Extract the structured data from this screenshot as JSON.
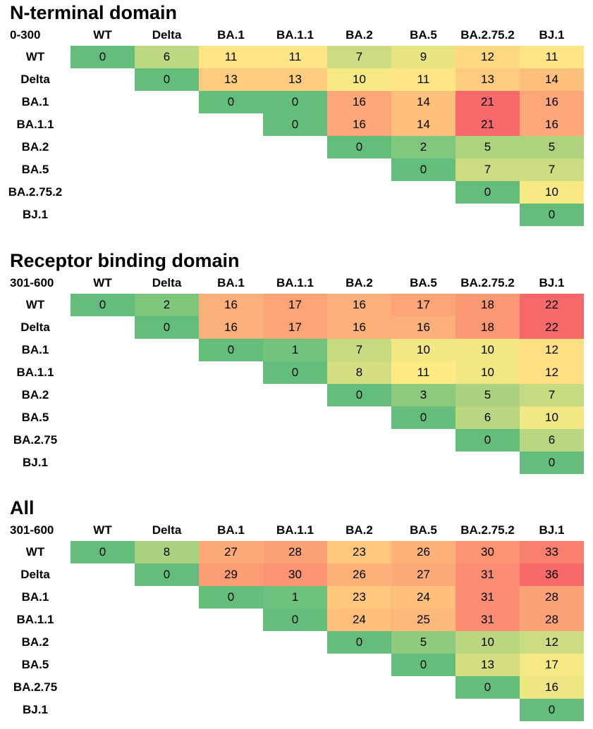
{
  "chart_data": [
    {
      "type": "heatmap",
      "title": "N-terminal domain",
      "corner_label": "0-300",
      "columns": [
        "WT",
        "Delta",
        "BA.1",
        "BA.1.1",
        "BA.2",
        "BA.5",
        "BA.2.75.2",
        "BJ.1"
      ],
      "rows": [
        "WT",
        "Delta",
        "BA.1",
        "BA.1.1",
        "BA.2",
        "BA.5",
        "BA.2.75.2",
        "BJ.1"
      ],
      "values": [
        [
          0,
          6,
          11,
          11,
          7,
          9,
          12,
          11
        ],
        [
          null,
          0,
          13,
          13,
          10,
          11,
          13,
          14
        ],
        [
          null,
          null,
          0,
          0,
          16,
          14,
          21,
          16
        ],
        [
          null,
          null,
          null,
          0,
          16,
          14,
          21,
          16
        ],
        [
          null,
          null,
          null,
          null,
          0,
          2,
          5,
          5
        ],
        [
          null,
          null,
          null,
          null,
          null,
          0,
          7,
          7
        ],
        [
          null,
          null,
          null,
          null,
          null,
          null,
          0,
          10
        ],
        [
          null,
          null,
          null,
          null,
          null,
          null,
          null,
          0
        ]
      ],
      "color_scale": "green-yellow-red",
      "color_range": [
        0,
        21
      ]
    },
    {
      "type": "heatmap",
      "title": "Receptor binding domain",
      "corner_label": "301-600",
      "columns": [
        "WT",
        "Delta",
        "BA.1",
        "BA.1.1",
        "BA.2",
        "BA.5",
        "BA.2.75.2",
        "BJ.1"
      ],
      "rows": [
        "WT",
        "Delta",
        "BA.1",
        "BA.1.1",
        "BA.2",
        "BA.5",
        "BA.2.75",
        "BJ.1"
      ],
      "values": [
        [
          0,
          2,
          16,
          17,
          16,
          17,
          18,
          22
        ],
        [
          null,
          0,
          16,
          17,
          16,
          16,
          18,
          22
        ],
        [
          null,
          null,
          0,
          1,
          7,
          10,
          10,
          12
        ],
        [
          null,
          null,
          null,
          0,
          8,
          11,
          10,
          12
        ],
        [
          null,
          null,
          null,
          null,
          0,
          3,
          5,
          7
        ],
        [
          null,
          null,
          null,
          null,
          null,
          0,
          6,
          10
        ],
        [
          null,
          null,
          null,
          null,
          null,
          null,
          0,
          6
        ],
        [
          null,
          null,
          null,
          null,
          null,
          null,
          null,
          0
        ]
      ],
      "color_scale": "green-yellow-red",
      "color_range": [
        0,
        22
      ]
    },
    {
      "type": "heatmap",
      "title": "All",
      "corner_label": "301-600",
      "columns": [
        "WT",
        "Delta",
        "BA.1",
        "BA.1.1",
        "BA.2",
        "BA.5",
        "BA.2.75.2",
        "BJ.1"
      ],
      "rows": [
        "WT",
        "Delta",
        "BA.1",
        "BA.1.1",
        "BA.2",
        "BA.5",
        "BA.2.75",
        "BJ.1"
      ],
      "values": [
        [
          0,
          8,
          27,
          28,
          23,
          26,
          30,
          33
        ],
        [
          null,
          0,
          29,
          30,
          26,
          27,
          31,
          36
        ],
        [
          null,
          null,
          0,
          1,
          23,
          24,
          31,
          28
        ],
        [
          null,
          null,
          null,
          0,
          24,
          25,
          31,
          28
        ],
        [
          null,
          null,
          null,
          null,
          0,
          5,
          10,
          12
        ],
        [
          null,
          null,
          null,
          null,
          null,
          0,
          13,
          17
        ],
        [
          null,
          null,
          null,
          null,
          null,
          null,
          0,
          16
        ],
        [
          null,
          null,
          null,
          null,
          null,
          null,
          null,
          0
        ]
      ],
      "color_scale": "green-yellow-red",
      "color_range": [
        0,
        36
      ]
    }
  ]
}
